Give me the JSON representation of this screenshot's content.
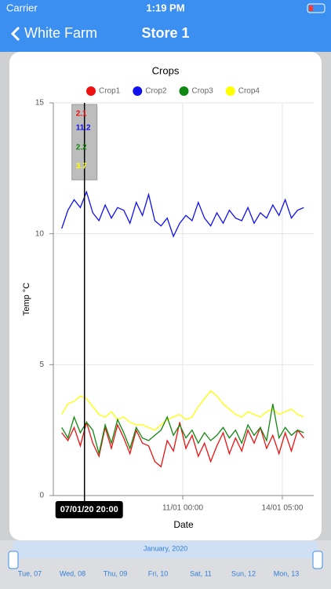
{
  "status_bar": {
    "carrier": "Carrier",
    "time": "1:19 PM"
  },
  "nav": {
    "back": "White Farm",
    "title": "Store 1"
  },
  "chart_data": {
    "type": "line",
    "title": "Crops",
    "x_label": "Date",
    "y_label": "Temp °C",
    "x": [
      7.1,
      7.3,
      7.5,
      7.7,
      7.9,
      8.1,
      8.3,
      8.5,
      8.7,
      8.9,
      9.1,
      9.3,
      9.5,
      9.7,
      9.9,
      10.1,
      10.3,
      10.5,
      10.7,
      10.9,
      11.1,
      11.3,
      11.5,
      11.7,
      11.9,
      12.1,
      12.3,
      12.5,
      12.7,
      12.9,
      13.1,
      13.3,
      13.5,
      13.7,
      13.9,
      14.1,
      14.3,
      14.5,
      14.7,
      14.9
    ],
    "series": [
      {
        "name": "Crop1",
        "color": "#ee1111",
        "values": [
          2.4,
          2.1,
          2.6,
          1.9,
          2.8,
          2.0,
          1.5,
          2.6,
          1.8,
          2.7,
          2.2,
          1.6,
          2.5,
          2.0,
          1.9,
          1.3,
          1.1,
          2.1,
          1.7,
          2.8,
          1.8,
          2.3,
          1.5,
          2.0,
          1.3,
          1.9,
          2.4,
          1.6,
          2.2,
          1.7,
          2.5,
          2.0,
          2.6,
          1.8,
          2.3,
          1.6,
          2.4,
          1.7,
          2.5,
          2.2
        ]
      },
      {
        "name": "Crop2",
        "color": "#1111ee",
        "values": [
          10.2,
          10.9,
          11.3,
          11.0,
          11.6,
          10.8,
          10.5,
          11.1,
          10.6,
          11.0,
          10.9,
          10.4,
          11.2,
          10.7,
          11.5,
          10.5,
          10.3,
          10.6,
          9.9,
          10.4,
          10.7,
          10.5,
          11.2,
          10.6,
          10.3,
          10.8,
          10.4,
          10.9,
          10.6,
          10.5,
          11.0,
          10.4,
          10.8,
          10.6,
          11.1,
          10.7,
          11.3,
          10.6,
          10.9,
          11.0
        ]
      },
      {
        "name": "Crop3",
        "color": "#118811",
        "values": [
          2.6,
          2.2,
          3.0,
          2.4,
          2.8,
          2.5,
          1.6,
          2.7,
          2.0,
          2.9,
          2.4,
          1.8,
          2.6,
          2.2,
          2.1,
          2.3,
          2.5,
          3.0,
          2.3,
          2.7,
          2.2,
          2.5,
          2.0,
          2.4,
          2.1,
          2.3,
          2.6,
          2.2,
          2.5,
          2.0,
          2.7,
          2.3,
          2.6,
          2.1,
          3.5,
          2.2,
          2.6,
          2.3,
          2.5,
          2.4
        ]
      },
      {
        "name": "Crop4",
        "color": "#ffff00",
        "values": [
          3.1,
          3.5,
          3.6,
          3.8,
          3.7,
          3.4,
          3.1,
          3.0,
          3.2,
          2.9,
          3.0,
          2.8,
          2.7,
          2.7,
          2.6,
          2.5,
          2.7,
          2.9,
          3.0,
          3.1,
          2.9,
          3.0,
          3.4,
          3.7,
          4.0,
          3.8,
          3.5,
          3.3,
          3.1,
          3.0,
          3.2,
          3.1,
          3.0,
          3.2,
          3.3,
          3.1,
          3.2,
          3.3,
          3.1,
          3.0
        ]
      }
    ],
    "xlim": [
      6.83,
      15.22
    ],
    "xticks": [
      {
        "value": 11,
        "label": "11/01 00:00"
      },
      {
        "value": 14.2083,
        "label": "14/01 05:00"
      }
    ],
    "ylim": [
      0,
      15
    ],
    "yticks": [
      0,
      5,
      10,
      15
    ],
    "grid": true,
    "tooltip": {
      "label": "07/01/20 20:00",
      "x": 7.8333,
      "values": [
        2.1,
        11.2,
        2.2,
        3.7
      ]
    }
  },
  "range_selector": {
    "month": "January, 2020",
    "days": [
      "Tue, 07",
      "Wed, 08",
      "Thu, 09",
      "Fri, 10",
      "Sat, 11",
      "Sun, 12",
      "Mon, 13"
    ]
  }
}
